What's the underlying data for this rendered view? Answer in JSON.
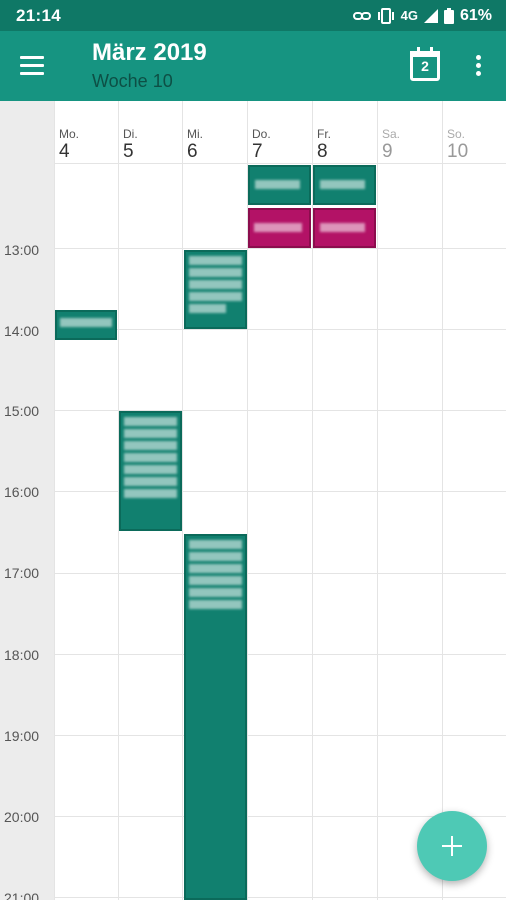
{
  "status_bar": {
    "time": "21:14",
    "network": "4G",
    "battery": "61%"
  },
  "app_bar": {
    "title": "März 2019",
    "subtitle": "Woche 10",
    "today_date": "2"
  },
  "days": [
    {
      "abbr": "Mo.",
      "num": "4"
    },
    {
      "abbr": "Di.",
      "num": "5"
    },
    {
      "abbr": "Mi.",
      "num": "6"
    },
    {
      "abbr": "Do.",
      "num": "7"
    },
    {
      "abbr": "Fr.",
      "num": "8"
    },
    {
      "abbr": "Sa.",
      "num": "9"
    },
    {
      "abbr": "So.",
      "num": "10"
    }
  ],
  "hours": [
    "13:00",
    "14:00",
    "15:00",
    "16:00",
    "17:00",
    "18:00",
    "19:00",
    "20:00",
    "21:00"
  ],
  "colors": {
    "primary": "#169481",
    "primary_dark": "#0f7866",
    "event_green": "#11806f",
    "event_magenta": "#b31266",
    "fab": "#4ec9b5"
  },
  "icons": {
    "menu": "menu-icon",
    "today": "calendar-today-icon",
    "more": "more-vert-icon",
    "add": "add-icon"
  }
}
